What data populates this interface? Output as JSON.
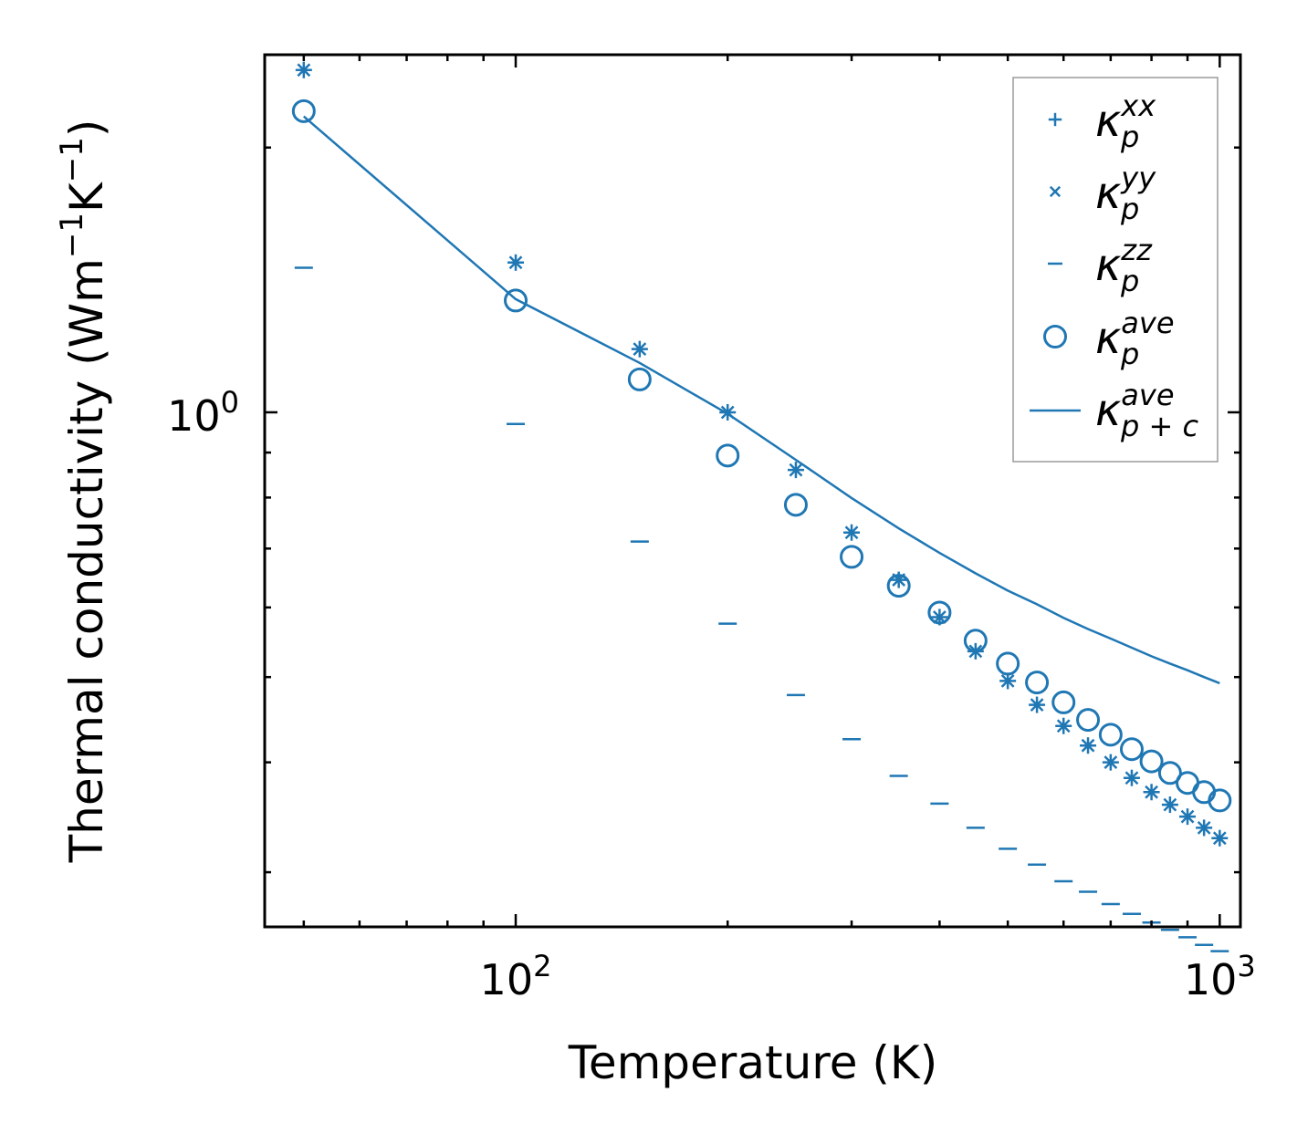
{
  "chart_data": {
    "type": "scatter",
    "xscale": "log",
    "yscale": "log",
    "xlabel": "Temperature (K)",
    "ylabel": "Thermal conductivity (Wm",
    "ylabel_parts": [
      "Thermal conductivity (Wm",
      "−1",
      "K",
      "−1",
      ")"
    ],
    "xlim": [
      44,
      1070
    ],
    "ylim": [
      0.26,
      2.55
    ],
    "xticks": [
      {
        "base": "10",
        "exp": "2",
        "value": 100
      },
      {
        "base": "10",
        "exp": "3",
        "value": 1000
      }
    ],
    "yticks": [
      {
        "base": "10",
        "exp": "0",
        "value": 1
      }
    ],
    "x": [
      50,
      100,
      150,
      200,
      250,
      300,
      350,
      400,
      450,
      500,
      550,
      600,
      650,
      700,
      750,
      800,
      850,
      900,
      950,
      1000
    ],
    "series": [
      {
        "name": "xx",
        "marker": "plus",
        "values": [
          2.45,
          1.48,
          1.18,
          1.0,
          0.86,
          0.73,
          0.645,
          0.585,
          0.535,
          0.495,
          0.465,
          0.44,
          0.418,
          0.4,
          0.384,
          0.37,
          0.358,
          0.347,
          0.337,
          0.328
        ]
      },
      {
        "name": "yy",
        "marker": "x",
        "values": [
          2.45,
          1.48,
          1.18,
          1.0,
          0.86,
          0.73,
          0.645,
          0.585,
          0.535,
          0.495,
          0.465,
          0.44,
          0.418,
          0.4,
          0.384,
          0.37,
          0.358,
          0.347,
          0.337,
          0.328
        ]
      },
      {
        "name": "zz",
        "marker": "dash",
        "values": [
          1.46,
          0.97,
          0.713,
          0.575,
          0.477,
          0.425,
          0.386,
          0.359,
          0.337,
          0.319,
          0.306,
          0.293,
          0.285,
          0.276,
          0.269,
          0.263,
          0.258,
          0.253,
          0.248,
          0.244
        ]
      },
      {
        "name": "ave",
        "marker": "circle",
        "values": [
          2.2,
          1.34,
          1.09,
          0.893,
          0.785,
          0.685,
          0.635,
          0.592,
          0.55,
          0.518,
          0.493,
          0.468,
          0.447,
          0.43,
          0.414,
          0.401,
          0.389,
          0.379,
          0.37,
          0.362
        ]
      },
      {
        "name": "ave_pc",
        "marker": "line",
        "values": [
          2.17,
          1.345,
          1.138,
          0.996,
          0.883,
          0.799,
          0.738,
          0.692,
          0.656,
          0.627,
          0.605,
          0.584,
          0.567,
          0.553,
          0.54,
          0.528,
          0.518,
          0.509,
          0.5,
          0.492
        ]
      }
    ],
    "legend": {
      "position": "top-right",
      "entries": [
        {
          "key": "xx",
          "main": "κ",
          "sup": "xx",
          "sub": "p"
        },
        {
          "key": "yy",
          "main": "κ",
          "sup": "yy",
          "sub": "p"
        },
        {
          "key": "zz",
          "main": "κ",
          "sup": "zz",
          "sub": "p"
        },
        {
          "key": "ave",
          "main": "κ",
          "sup": "ave",
          "sub": "p"
        },
        {
          "key": "ave_pc",
          "main": "κ",
          "sup": "ave",
          "sub": "p + c"
        }
      ]
    },
    "colors": {
      "series": "#1f77b4",
      "axis": "#000000",
      "legend_border": "#9a9a9a"
    }
  }
}
